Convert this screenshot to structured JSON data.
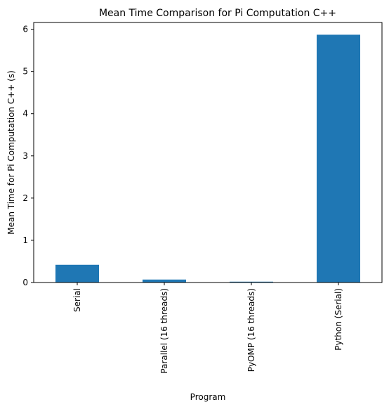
{
  "chart_data": {
    "type": "bar",
    "title": "Mean Time Comparison for Pi Computation C++",
    "xlabel": "Program",
    "ylabel": "Mean Time for Pi Computation C++ (s)",
    "categories": [
      "Serial",
      "Parallel (16 threads)",
      "PyOMP (16 threads)",
      "Python (Serial)"
    ],
    "values": [
      0.42,
      0.07,
      0.02,
      5.87
    ],
    "ylim": [
      0,
      6.16
    ],
    "yticks": [
      0,
      1,
      2,
      3,
      4,
      5,
      6
    ],
    "bar_color": "#1f77b4",
    "grid": false,
    "legend": "none"
  }
}
